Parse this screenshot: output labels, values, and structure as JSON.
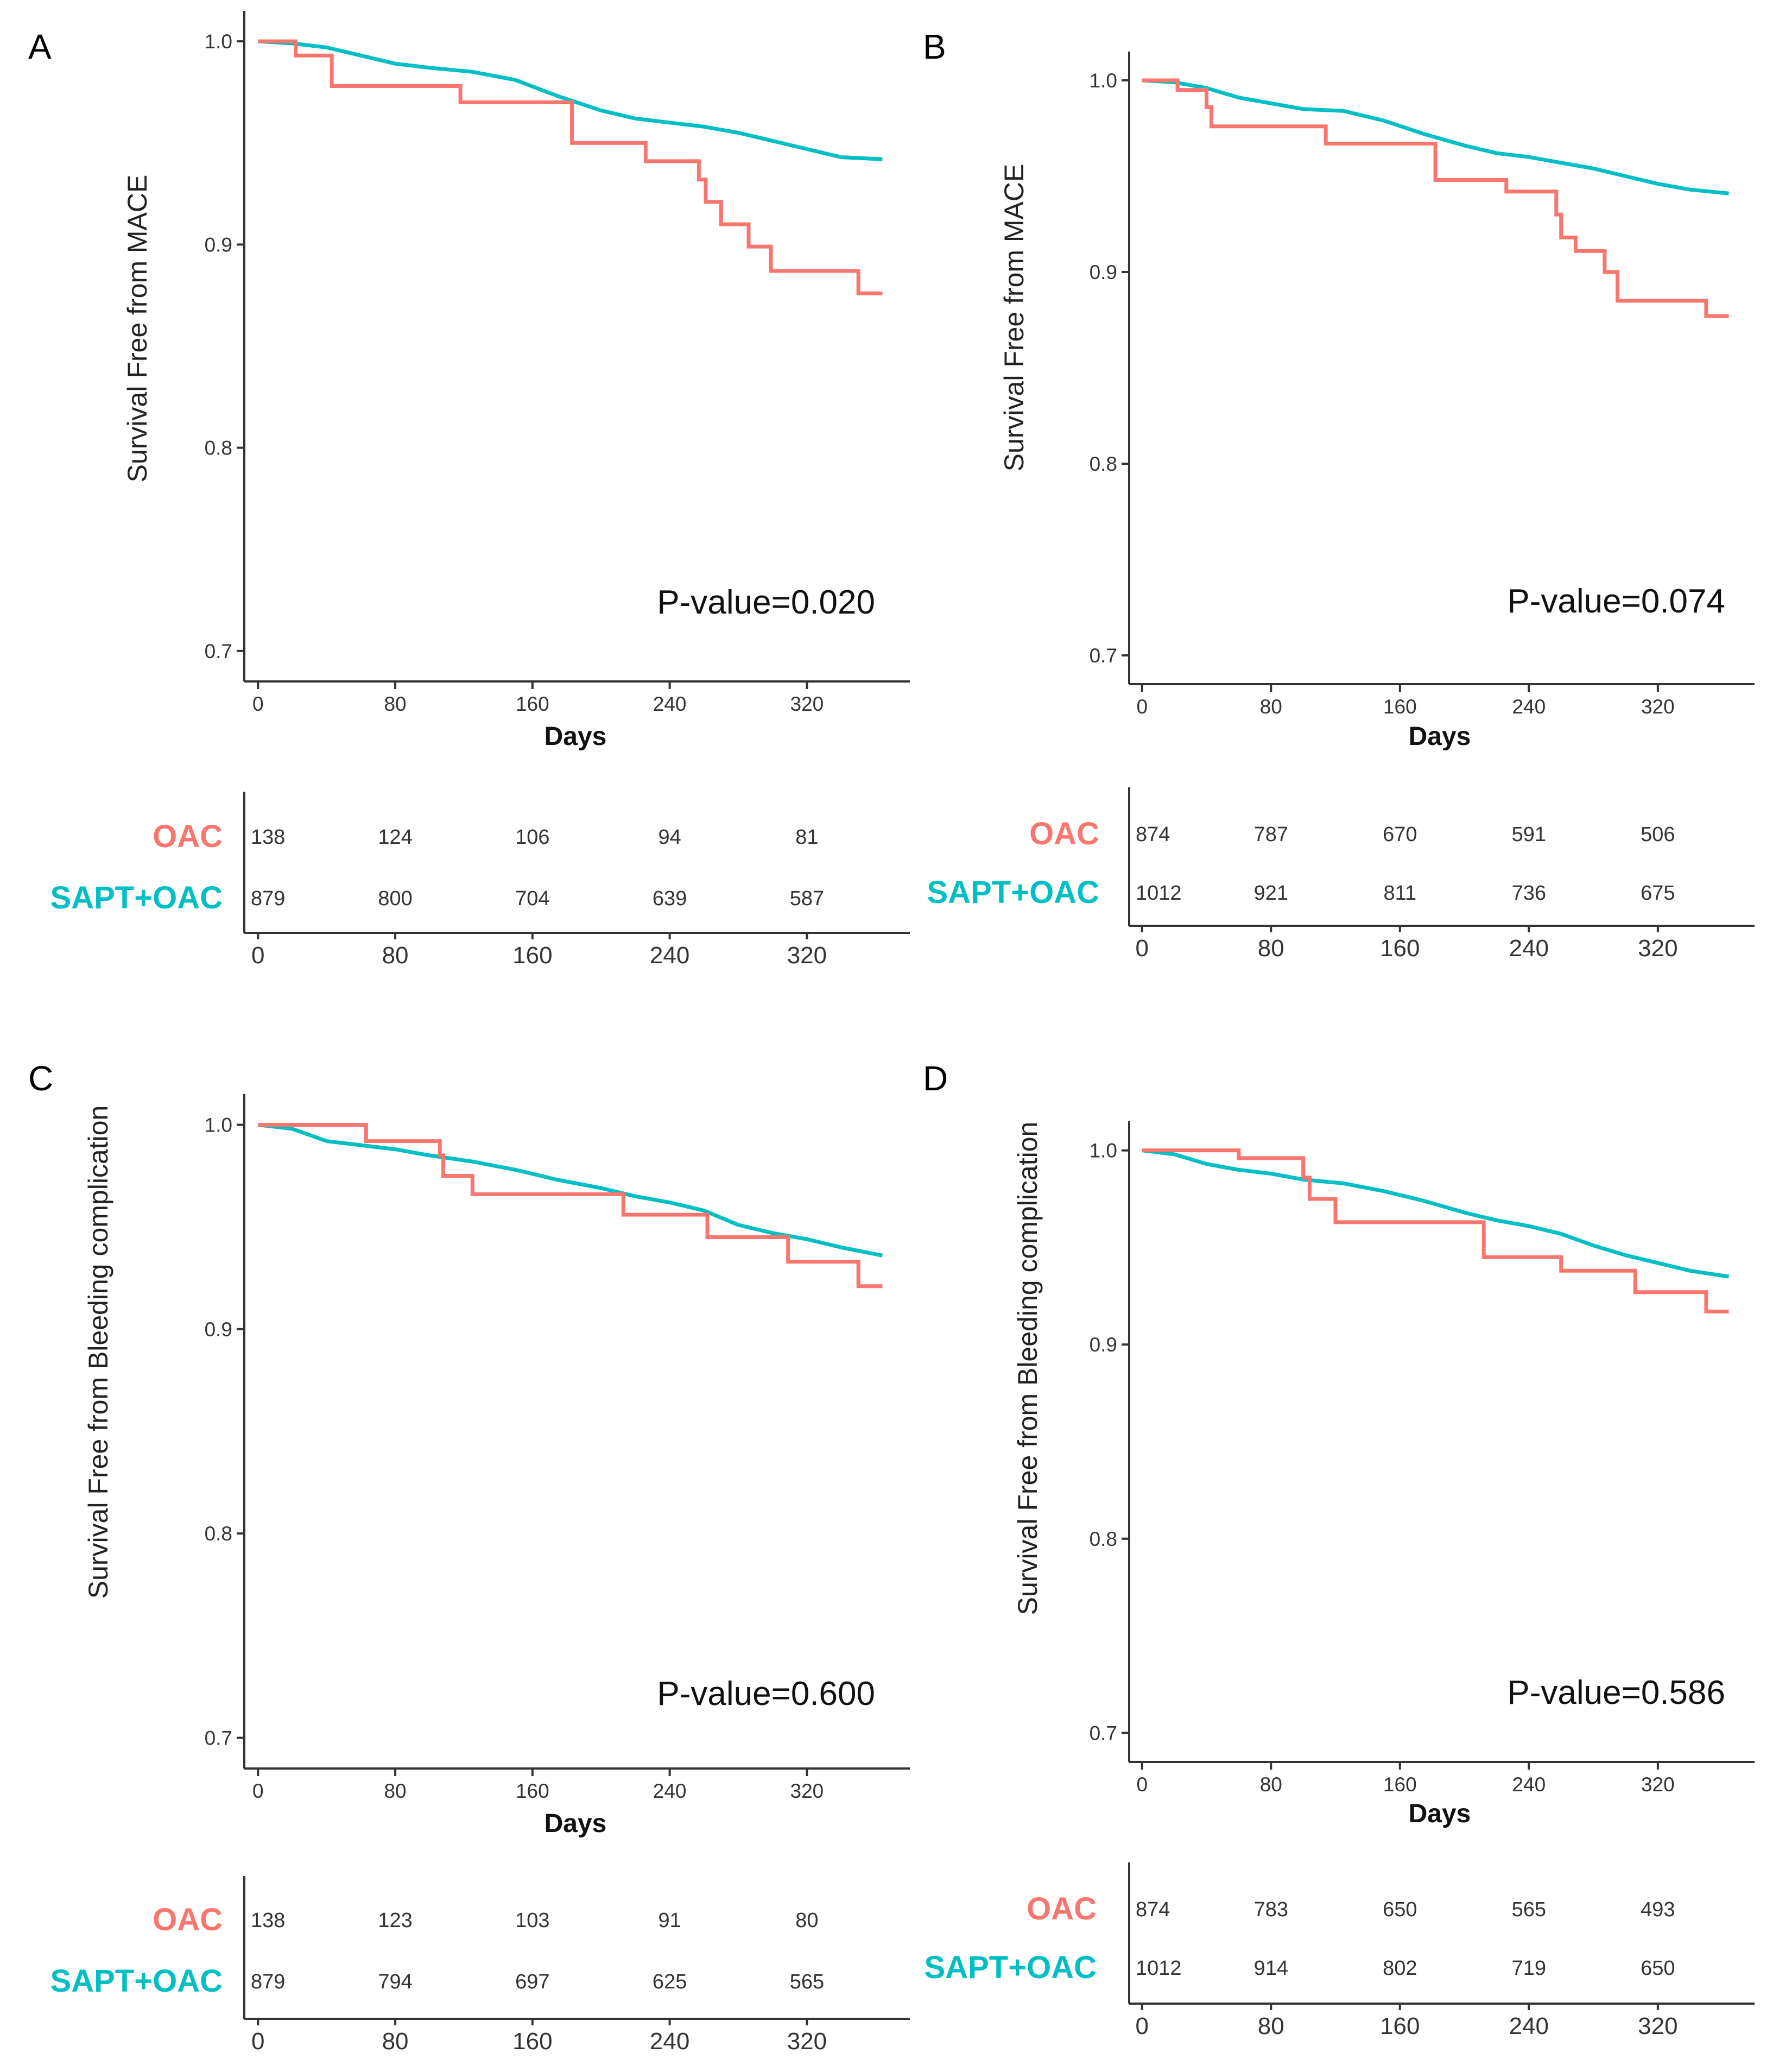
{
  "colors": {
    "oac": "#F8766D",
    "sapt": "#00BFC4",
    "axis": "#333333"
  },
  "risk_table": {
    "group_labels": [
      "OAC",
      "SAPT+OAC"
    ]
  },
  "chart_data": [
    {
      "panel": "A",
      "type": "line",
      "title": "",
      "xlabel": "Days",
      "ylabel": "Survival Free from MACE",
      "p_value": "P-value=0.020",
      "xlim": [
        -8,
        380
      ],
      "ylim": [
        0.685,
        1.015
      ],
      "x_ticks": [
        0,
        80,
        160,
        240,
        320
      ],
      "y_ticks": [
        0.7,
        0.8,
        0.9,
        1.0
      ],
      "y_tick_labels": [
        "0.7",
        "0.8",
        "0.9",
        "1.0"
      ],
      "series": [
        {
          "name": "OAC",
          "points": [
            [
              0,
              1.0
            ],
            [
              22,
              1.0
            ],
            [
              22,
              0.993
            ],
            [
              43,
              0.993
            ],
            [
              43,
              0.978
            ],
            [
              118,
              0.978
            ],
            [
              118,
              0.97
            ],
            [
              183,
              0.97
            ],
            [
              183,
              0.95
            ],
            [
              226,
              0.95
            ],
            [
              226,
              0.941
            ],
            [
              257,
              0.941
            ],
            [
              257,
              0.932
            ],
            [
              261,
              0.932
            ],
            [
              261,
              0.921
            ],
            [
              270,
              0.921
            ],
            [
              270,
              0.91
            ],
            [
              286,
              0.91
            ],
            [
              286,
              0.899
            ],
            [
              299,
              0.899
            ],
            [
              299,
              0.887
            ],
            [
              350,
              0.887
            ],
            [
              350,
              0.876
            ],
            [
              364,
              0.876
            ]
          ]
        },
        {
          "name": "SAPT+OAC",
          "points": [
            [
              0,
              1.0
            ],
            [
              20,
              0.999
            ],
            [
              40,
              0.997
            ],
            [
              60,
              0.993
            ],
            [
              80,
              0.989
            ],
            [
              100,
              0.987
            ],
            [
              125,
              0.985
            ],
            [
              150,
              0.981
            ],
            [
              175,
              0.973
            ],
            [
              200,
              0.966
            ],
            [
              220,
              0.962
            ],
            [
              240,
              0.96
            ],
            [
              260,
              0.958
            ],
            [
              280,
              0.955
            ],
            [
              300,
              0.951
            ],
            [
              320,
              0.947
            ],
            [
              340,
              0.943
            ],
            [
              364,
              0.942
            ]
          ]
        }
      ],
      "risk": {
        "times": [
          0,
          80,
          160,
          240,
          320
        ],
        "OAC": [
          138,
          124,
          106,
          94,
          81
        ],
        "SAPT+OAC": [
          879,
          800,
          704,
          639,
          587
        ]
      }
    },
    {
      "panel": "B",
      "type": "line",
      "title": "",
      "xlabel": "Days",
      "ylabel": "Survival Free from MACE",
      "p_value": "P-value=0.074",
      "xlim": [
        -8,
        380
      ],
      "ylim": [
        0.685,
        1.015
      ],
      "x_ticks": [
        0,
        80,
        160,
        240,
        320
      ],
      "y_ticks": [
        0.7,
        0.8,
        0.9,
        1.0
      ],
      "y_tick_labels": [
        "0.7",
        "0.8",
        "0.9",
        "1.0"
      ],
      "series": [
        {
          "name": "OAC",
          "points": [
            [
              0,
              1.0
            ],
            [
              22,
              1.0
            ],
            [
              22,
              0.995
            ],
            [
              40,
              0.995
            ],
            [
              40,
              0.986
            ],
            [
              43,
              0.986
            ],
            [
              43,
              0.976
            ],
            [
              114,
              0.976
            ],
            [
              114,
              0.967
            ],
            [
              182,
              0.967
            ],
            [
              182,
              0.948
            ],
            [
              226,
              0.948
            ],
            [
              226,
              0.942
            ],
            [
              257,
              0.942
            ],
            [
              257,
              0.93
            ],
            [
              260,
              0.93
            ],
            [
              260,
              0.918
            ],
            [
              269,
              0.918
            ],
            [
              269,
              0.911
            ],
            [
              287,
              0.911
            ],
            [
              287,
              0.9
            ],
            [
              295,
              0.9
            ],
            [
              295,
              0.885
            ],
            [
              350,
              0.885
            ],
            [
              350,
              0.877
            ],
            [
              364,
              0.877
            ]
          ]
        },
        {
          "name": "SAPT+OAC",
          "points": [
            [
              0,
              1.0
            ],
            [
              20,
              0.999
            ],
            [
              40,
              0.996
            ],
            [
              60,
              0.991
            ],
            [
              80,
              0.988
            ],
            [
              100,
              0.985
            ],
            [
              125,
              0.984
            ],
            [
              150,
              0.979
            ],
            [
              175,
              0.972
            ],
            [
              200,
              0.966
            ],
            [
              220,
              0.962
            ],
            [
              240,
              0.96
            ],
            [
              260,
              0.957
            ],
            [
              280,
              0.954
            ],
            [
              300,
              0.95
            ],
            [
              320,
              0.946
            ],
            [
              340,
              0.943
            ],
            [
              364,
              0.941
            ]
          ]
        }
      ],
      "risk": {
        "times": [
          0,
          80,
          160,
          240,
          320
        ],
        "OAC": [
          874,
          787,
          670,
          591,
          506
        ],
        "SAPT+OAC": [
          1012,
          921,
          811,
          736,
          675
        ]
      }
    },
    {
      "panel": "C",
      "type": "line",
      "title": "",
      "xlabel": "Days",
      "ylabel": "Survival Free from Bleeding complication",
      "p_value": "P-value=0.600",
      "xlim": [
        -8,
        380
      ],
      "ylim": [
        0.685,
        1.015
      ],
      "x_ticks": [
        0,
        80,
        160,
        240,
        320
      ],
      "y_ticks": [
        0.7,
        0.8,
        0.9,
        1.0
      ],
      "y_tick_labels": [
        "0.7",
        "0.8",
        "0.9",
        "1.0"
      ],
      "series": [
        {
          "name": "OAC",
          "points": [
            [
              0,
              1.0
            ],
            [
              63,
              1.0
            ],
            [
              63,
              0.992
            ],
            [
              106,
              0.992
            ],
            [
              106,
              0.985
            ],
            [
              108,
              0.985
            ],
            [
              108,
              0.975
            ],
            [
              125,
              0.975
            ],
            [
              125,
              0.966
            ],
            [
              213,
              0.966
            ],
            [
              213,
              0.956
            ],
            [
              262,
              0.956
            ],
            [
              262,
              0.945
            ],
            [
              309,
              0.945
            ],
            [
              309,
              0.933
            ],
            [
              350,
              0.933
            ],
            [
              350,
              0.921
            ],
            [
              364,
              0.921
            ]
          ]
        },
        {
          "name": "SAPT+OAC",
          "points": [
            [
              0,
              1.0
            ],
            [
              20,
              0.998
            ],
            [
              40,
              0.992
            ],
            [
              60,
              0.99
            ],
            [
              80,
              0.988
            ],
            [
              100,
              0.985
            ],
            [
              125,
              0.982
            ],
            [
              150,
              0.978
            ],
            [
              175,
              0.973
            ],
            [
              200,
              0.969
            ],
            [
              220,
              0.965
            ],
            [
              240,
              0.962
            ],
            [
              260,
              0.958
            ],
            [
              280,
              0.951
            ],
            [
              300,
              0.947
            ],
            [
              320,
              0.944
            ],
            [
              340,
              0.94
            ],
            [
              364,
              0.936
            ]
          ]
        }
      ],
      "risk": {
        "times": [
          0,
          80,
          160,
          240,
          320
        ],
        "OAC": [
          138,
          123,
          103,
          91,
          80
        ],
        "SAPT+OAC": [
          879,
          794,
          697,
          625,
          565
        ]
      }
    },
    {
      "panel": "D",
      "type": "line",
      "title": "",
      "xlabel": "Days",
      "ylabel": "Survival Free from Bleeding complication",
      "p_value": "P-value=0.586",
      "xlim": [
        -8,
        380
      ],
      "ylim": [
        0.685,
        1.015
      ],
      "x_ticks": [
        0,
        80,
        160,
        240,
        320
      ],
      "y_ticks": [
        0.7,
        0.8,
        0.9,
        1.0
      ],
      "y_tick_labels": [
        "0.7",
        "0.8",
        "0.9",
        "1.0"
      ],
      "series": [
        {
          "name": "OAC",
          "points": [
            [
              0,
              1.0
            ],
            [
              60,
              1.0
            ],
            [
              60,
              0.996
            ],
            [
              100,
              0.996
            ],
            [
              100,
              0.986
            ],
            [
              104,
              0.986
            ],
            [
              104,
              0.975
            ],
            [
              120,
              0.975
            ],
            [
              120,
              0.963
            ],
            [
              212,
              0.963
            ],
            [
              212,
              0.945
            ],
            [
              260,
              0.945
            ],
            [
              260,
              0.938
            ],
            [
              306,
              0.938
            ],
            [
              306,
              0.927
            ],
            [
              350,
              0.927
            ],
            [
              350,
              0.917
            ],
            [
              364,
              0.917
            ]
          ]
        },
        {
          "name": "SAPT+OAC",
          "points": [
            [
              0,
              1.0
            ],
            [
              20,
              0.998
            ],
            [
              40,
              0.993
            ],
            [
              60,
              0.99
            ],
            [
              80,
              0.988
            ],
            [
              100,
              0.985
            ],
            [
              125,
              0.983
            ],
            [
              150,
              0.979
            ],
            [
              175,
              0.974
            ],
            [
              200,
              0.968
            ],
            [
              220,
              0.964
            ],
            [
              240,
              0.961
            ],
            [
              260,
              0.957
            ],
            [
              280,
              0.951
            ],
            [
              300,
              0.946
            ],
            [
              320,
              0.942
            ],
            [
              340,
              0.938
            ],
            [
              364,
              0.935
            ]
          ]
        }
      ],
      "risk": {
        "times": [
          0,
          80,
          160,
          240,
          320
        ],
        "OAC": [
          874,
          783,
          650,
          565,
          493
        ],
        "SAPT+OAC": [
          1012,
          914,
          802,
          719,
          650
        ]
      }
    }
  ]
}
